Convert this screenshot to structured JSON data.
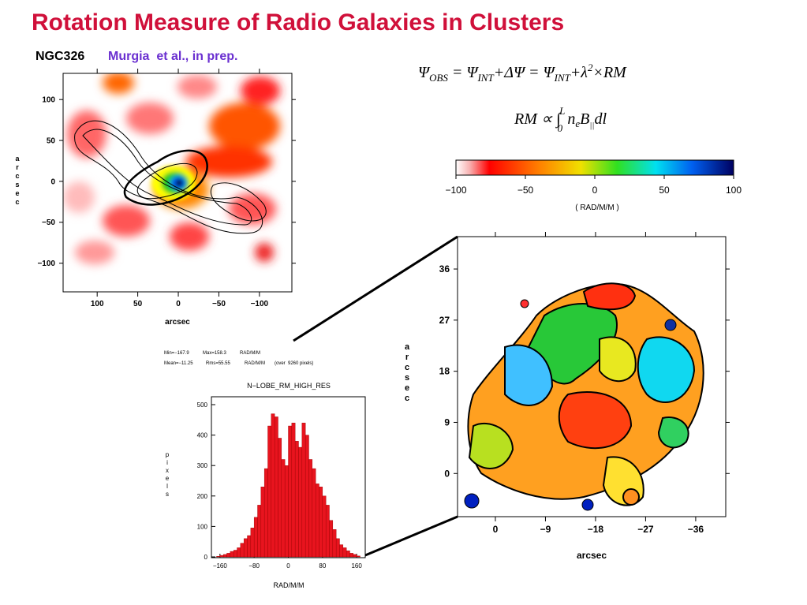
{
  "title": "Rotation Measure of Radio Galaxies in Clusters",
  "source": {
    "object": "NGC326",
    "authors": "Murgia  et al., in prep."
  },
  "equations": {
    "faraday": [
      "Ψ",
      "OBS",
      " = Ψ",
      "INT",
      "+ΔΨ = Ψ",
      "INT",
      "+λ",
      "2",
      "×RM"
    ],
    "rm": [
      "RM ∝ ∫",
      "0",
      "L",
      "n",
      "e",
      "B",
      "||",
      "dl"
    ]
  },
  "colorbar": {
    "xlim": [
      -100,
      100
    ],
    "xticks": [
      {
        "value": -100,
        "label": "−100"
      },
      {
        "value": -50,
        "label": "−50"
      },
      0,
      50,
      100
    ],
    "label": "( RAD/M/M )"
  },
  "left_map": {
    "xlim": [
      142,
      -140
    ],
    "ylim": [
      -135,
      132
    ],
    "xticks": [
      100,
      50,
      0,
      {
        "value": -50,
        "label": "−50"
      },
      {
        "value": -100,
        "label": "−100"
      }
    ],
    "yticks": [
      100,
      50,
      0,
      {
        "value": -50,
        "label": "−50"
      },
      {
        "value": -100,
        "label": "−100"
      }
    ],
    "xlabel": "arcsec",
    "ylabel": "arcsec"
  },
  "right_map": {
    "xlim": [
      6.8,
      -41.4
    ],
    "ylim": [
      -7.6,
      41.7
    ],
    "xticks": [
      0,
      {
        "value": -9,
        "label": "−9"
      },
      {
        "value": -18,
        "label": "−18"
      },
      {
        "value": -27,
        "label": "−27"
      },
      {
        "value": -36,
        "label": "−36"
      }
    ],
    "yticks": [
      36,
      27,
      18,
      9,
      0
    ],
    "xlabel": "arcsec",
    "ylabel": "arcsec"
  },
  "stats": {
    "min": "Min=−167.9",
    "max": "Max=158.3",
    "unit1": "RAD/M/M",
    "mean": "Mean=−11.25",
    "rms": "Rms=55.55",
    "unit2": "RAD/M/M",
    "pixels": "(over  9260 pixels)"
  },
  "histogram": {
    "type": "histogram",
    "title": "N−LOBE_RM_HIGH_RES",
    "xlabel": "RAD/M/M",
    "ylabel": "pixels",
    "color": "#e8141e",
    "bins": [
      -168,
      -160,
      -152,
      -144,
      -136,
      -128,
      -120,
      -112,
      -104,
      -96,
      -88,
      -80,
      -72,
      -64,
      -56,
      -48,
      -40,
      -32,
      -24,
      -16,
      -8,
      0,
      8,
      16,
      24,
      32,
      40,
      48,
      56,
      64,
      72,
      80,
      88,
      96,
      104,
      112,
      120,
      128,
      136,
      144,
      152,
      160,
      168
    ],
    "values": [
      2,
      5,
      8,
      12,
      18,
      22,
      30,
      45,
      60,
      70,
      95,
      130,
      170,
      230,
      290,
      430,
      470,
      460,
      390,
      320,
      300,
      430,
      440,
      380,
      360,
      440,
      400,
      320,
      290,
      240,
      230,
      200,
      170,
      120,
      90,
      60,
      40,
      30,
      20,
      12,
      8,
      3
    ],
    "xlim": [
      -180,
      180
    ],
    "ylim": [
      0,
      500
    ],
    "xticks": [
      {
        "value": -160,
        "label": "−160"
      },
      {
        "value": -80,
        "label": "−80"
      },
      0,
      80,
      160
    ],
    "yticks": [
      0,
      100,
      200,
      300,
      400,
      500
    ]
  }
}
